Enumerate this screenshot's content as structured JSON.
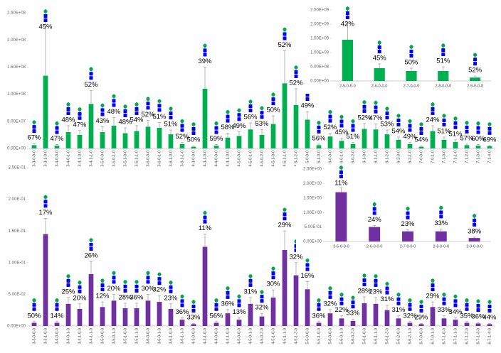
{
  "chart_data": [
    {
      "type": "bar",
      "color": "#00b050",
      "categories": [
        "3-3-0-0-0",
        "3-3-1-0-0",
        "3-4-0-0-0",
        "3-4-0-1-0",
        "3-4-1-0-0",
        "3-4-1-1-0",
        "3-5-0-0-0",
        "3-5-0-1-0",
        "3-5-1-0-0",
        "3-5-1-1-0",
        "3-6-0-0-0",
        "3-6-0-1-0",
        "3-6-1-0-0",
        "3-6-1-1-0",
        "4-3-0-0-0",
        "4-3-1-0-0",
        "4-4-0-0-0",
        "4-4-1-0-0",
        "4-5-0-0-0",
        "4-5-0-1-0",
        "4-5-0-2-0",
        "4-5-1-0-0",
        "4-5-1-1-0",
        "4-5-1-2-0",
        "5-5-0-0-0",
        "5-5-1-0-0",
        "5-6-0-0-0",
        "5-6-0-1-0",
        "5-6-0-2-0",
        "5-6-1-0-0",
        "5-6-1-1-0",
        "5-6-1-2-0",
        "5-6-2-0-0",
        "5-6-2-1-0",
        "6-7-0-0-0",
        "6-7-0-1-0",
        "6-7-1-0-0",
        "6-7-1-1-0",
        "6-7-1-2-0",
        "6-7-1-3-0",
        "6-7-1-4-0"
      ],
      "values": [
        6000000,
        134000000,
        5000000,
        30000000,
        25000000,
        82000000,
        30000000,
        42000000,
        28000000,
        32000000,
        40000000,
        38000000,
        26000000,
        8000000,
        3000000,
        110000000,
        5000000,
        20000000,
        23000000,
        35000000,
        25000000,
        45000000,
        120000000,
        80000000,
        53000000,
        6000000,
        22000000,
        14000000,
        8000000,
        36000000,
        35000000,
        26000000,
        16000000,
        8000000,
        3000000,
        32000000,
        16000000,
        12000000,
        6000000,
        5000000,
        4000000
      ],
      "errors": [
        3000000,
        100000000,
        2000000,
        12000000,
        8000000,
        25000000,
        10000000,
        15000000,
        10000000,
        10000000,
        12000000,
        10000000,
        8000000,
        3000000,
        1000000,
        40000000,
        2000000,
        8000000,
        8000000,
        12000000,
        10000000,
        15000000,
        60000000,
        30000000,
        15000000,
        2000000,
        6000000,
        5000000,
        3000000,
        10000000,
        10000000,
        8000000,
        5000000,
        3000000,
        1000000,
        10000000,
        5000000,
        4000000,
        2000000,
        2000000,
        1500000
      ],
      "percent_labels": [
        "67%",
        "45%",
        "47%",
        "48%",
        "47%",
        "52%",
        "43%",
        "48%",
        "48%",
        "54%",
        "52%",
        "51%",
        "51%",
        "52%",
        "50%",
        "39%",
        "59%",
        "58%",
        "49%",
        "56%",
        "53%",
        "50%",
        "52%",
        "52%",
        "49%",
        "56%",
        "52%",
        "45%",
        "51%",
        "52%",
        "47%",
        "53%",
        "54%",
        "49%",
        "54%",
        "24%",
        "51%",
        "51%",
        "57%",
        "60%",
        "69%"
      ],
      "ylim": [
        0,
        250000000
      ],
      "yticks": [
        {
          "value": 0,
          "label": "0.00E+00"
        },
        {
          "value": 50000000,
          "label": "5.00E+07"
        },
        {
          "value": 100000000,
          "label": "1.00E+08"
        },
        {
          "value": 150000000,
          "label": "1.50E+08"
        },
        {
          "value": 200000000,
          "label": "2.00E+08"
        },
        {
          "value": 250000000,
          "label": "2.50E+08"
        }
      ],
      "grid": false
    },
    {
      "type": "bar",
      "color": "#00b050",
      "categories": [
        "2-5-0-0-0",
        "2-6-0-0-0",
        "2-7-0-0-0",
        "2-8-0-0-0",
        "2-9-0-0-0"
      ],
      "values": [
        1450000000,
        450000000,
        350000000,
        350000000,
        120000000
      ],
      "errors": [
        600000000,
        150000000,
        100000000,
        150000000,
        50000000
      ],
      "percent_labels": [
        "42%",
        "45%",
        "50%",
        "51%",
        "52%"
      ],
      "ylim": [
        0,
        2500000000
      ],
      "yticks": [
        {
          "value": 0,
          "label": "0.00E+00"
        },
        {
          "value": 500000000,
          "label": "5.00E+08"
        },
        {
          "value": 1000000000,
          "label": "1.00E+09"
        },
        {
          "value": 1500000000,
          "label": "1.50E+09"
        },
        {
          "value": 2000000000,
          "label": "2.00E+09"
        },
        {
          "value": 2500000000,
          "label": "2.50E+09"
        }
      ],
      "grid": false
    },
    {
      "type": "bar",
      "color": "#7030a0",
      "categories": [
        "3-3-0-0-0",
        "3-3-1-0-0",
        "3-4-0-0-0",
        "3-4-0-1-0",
        "3-4-1-0-0",
        "3-4-1-1-0",
        "3-5-0-0-0",
        "3-5-0-1-0",
        "3-5-1-0-0",
        "3-5-1-1-0",
        "3-6-0-0-0",
        "3-6-0-1-0",
        "3-6-1-0-0",
        "3-6-1-1-0",
        "4-3-0-0-0",
        "4-3-1-0-0",
        "4-4-0-0-0",
        "4-4-1-0-0",
        "4-5-0-0-0",
        "4-5-0-1-0",
        "4-5-0-2-0",
        "4-5-1-0-0",
        "4-5-1-1-0",
        "4-5-1-2-0",
        "5-5-0-0-0",
        "5-5-1-0-0",
        "5-6-0-0-0",
        "5-6-0-1-0",
        "5-6-0-2-0",
        "5-6-1-0-0",
        "5-6-1-1-0",
        "5-6-1-2-0",
        "5-6-2-0-0",
        "5-6-2-1-0",
        "6-7-0-0-0",
        "6-7-0-1-0",
        "6-7-1-0-0",
        "6-7-1-1-0",
        "6-7-1-2-0",
        "6-7-1-3-0",
        "6-7-1-4-0"
      ],
      "values": [
        0.005,
        0.145,
        0.005,
        0.035,
        0.027,
        0.082,
        0.03,
        0.04,
        0.028,
        0.028,
        0.04,
        0.038,
        0.027,
        0.01,
        0.003,
        0.125,
        0.005,
        0.02,
        0.01,
        0.035,
        0.015,
        0.045,
        0.12,
        0.08,
        0.058,
        0.005,
        0.02,
        0.012,
        0.008,
        0.036,
        0.035,
        0.025,
        0.012,
        0.005,
        0.003,
        0.03,
        0.012,
        0.01,
        0.005,
        0.004,
        0.003
      ],
      "errors": [
        0.002,
        0.025,
        0.002,
        0.01,
        0.008,
        0.02,
        0.008,
        0.01,
        0.008,
        0.008,
        0.01,
        0.01,
        0.008,
        0.003,
        0.001,
        0.02,
        0.002,
        0.006,
        0.003,
        0.01,
        0.005,
        0.012,
        0.03,
        0.02,
        0.012,
        0.002,
        0.006,
        0.004,
        0.003,
        0.01,
        0.01,
        0.008,
        0.004,
        0.002,
        0.001,
        0.008,
        0.004,
        0.003,
        0.002,
        0.0015,
        0.001
      ],
      "percent_labels": [
        "50%",
        "17%",
        "14%",
        "25%",
        "20%",
        "26%",
        "12%",
        "20%",
        "28%",
        "36%",
        "30%",
        "32%",
        "23%",
        "36%",
        "33%",
        "11%",
        "56%",
        "36%",
        "13%",
        "31%",
        "32%",
        "30%",
        "29%",
        "32%",
        "16%",
        "36%",
        "32%",
        "22%",
        "33%",
        "28%",
        "23%",
        "31%",
        "31%",
        "32%",
        "29%",
        "29%",
        "33%",
        "34%",
        "35%",
        "36%",
        "44%"
      ],
      "ylim": [
        0,
        0.25
      ],
      "yticks": [
        {
          "value": 0,
          "label": "0.00E+00"
        },
        {
          "value": 0.05,
          "label": "5.00E-02"
        },
        {
          "value": 0.1,
          "label": "1.00E-01"
        },
        {
          "value": 0.15,
          "label": "1.50E-01"
        },
        {
          "value": 0.2,
          "label": "2.00E-01"
        },
        {
          "value": 0.25,
          "label": "2.50E-01"
        }
      ],
      "grid": false
    },
    {
      "type": "bar",
      "color": "#7030a0",
      "categories": [
        "2-5-0-0-0",
        "2-6-0-0-0",
        "2-7-0-0-0",
        "2-8-0-0-0",
        "2-9-0-0-0"
      ],
      "values": [
        1.7,
        0.5,
        0.35,
        0.35,
        0.12
      ],
      "errors": [
        0.15,
        0.05,
        0.05,
        0.08,
        0.03
      ],
      "percent_labels": [
        "11%",
        "24%",
        "23%",
        "33%",
        "38%"
      ],
      "ylim": [
        0,
        2.5
      ],
      "yticks": [
        {
          "value": 0,
          "label": "0.00E+00"
        },
        {
          "value": 0.5,
          "label": "5.00E-01"
        },
        {
          "value": 1,
          "label": "1.00E+00"
        },
        {
          "value": 1.5,
          "label": "1.50E+00"
        },
        {
          "value": 2,
          "label": "2.00E+00"
        },
        {
          "value": 2.5,
          "label": "2.50E+00"
        }
      ],
      "grid": false
    }
  ]
}
